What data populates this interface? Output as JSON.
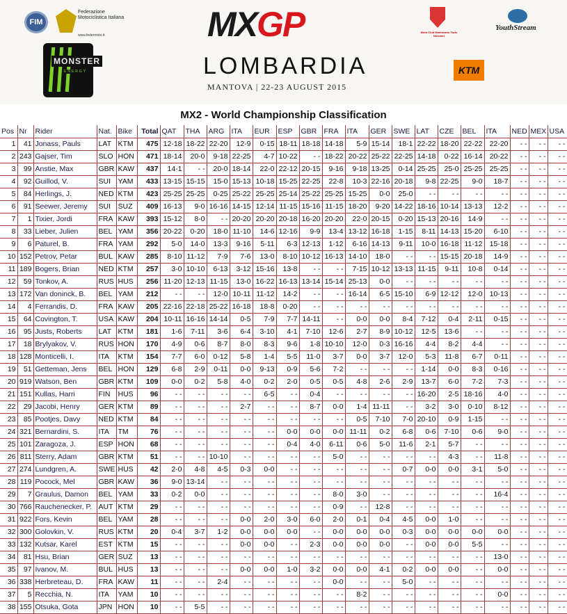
{
  "header": {
    "logos": {
      "fim": "FIM",
      "fmi": "Federazione Motociclistica Italiana",
      "fmi_url": "www.federmoto.it",
      "monster": "MONSTER",
      "monster_sub": "ENERGY",
      "mcm": "Moto Club Mantovano Tazio Nuvolari",
      "youthstream": "YouthStream",
      "ktm": "KTM"
    },
    "event_logo_mx": "MX",
    "event_logo_gp": "GP",
    "event": "LOMBARDIA",
    "subtitle": "MANTOVA | 22-23 AUGUST 2015",
    "brand_red": "#d8161d",
    "ktm_orange": "#f07d00",
    "monster_green": "#7fd12a"
  },
  "title": "MX2 - World Championship Classification",
  "table": {
    "border_color": "#9e3b3b",
    "columns": [
      "Pos",
      "Nr",
      "Rider",
      "Nat.",
      "Bike",
      "Total",
      "QAT",
      "THA",
      "ARG",
      "ITA",
      "EUR",
      "ESP",
      "GBR",
      "FRA",
      "ITA",
      "GER",
      "SWE",
      "LAT",
      "CZE",
      "BEL",
      "ITA",
      "NED",
      "MEX",
      "USA"
    ],
    "rows": [
      [
        "1",
        "41",
        "Jonass, Pauls",
        "LAT",
        "KTM",
        "475",
        "12-18",
        "18-22",
        "22-20",
        "12-9",
        "0-15",
        "18-11",
        "18-18",
        "14-18",
        "5-9",
        "15-14",
        "18-1",
        "22-22",
        "18-20",
        "22-22",
        "22-20",
        "- -",
        "- -",
        "- -"
      ],
      [
        "2",
        "243",
        "Gajser, Tim",
        "SLO",
        "HON",
        "471",
        "18-14",
        "20-0",
        "9-18",
        "22-25",
        "4-7",
        "10-22",
        "- -",
        "18-22",
        "20-22",
        "25-22",
        "22-25",
        "14-18",
        "0-22",
        "16-14",
        "20-22",
        "- -",
        "- -",
        "- -"
      ],
      [
        "3",
        "99",
        "Anstie, Max",
        "GBR",
        "KAW",
        "437",
        "14-1",
        "- -",
        "20-0",
        "18-14",
        "22-0",
        "22-12",
        "20-15",
        "9-16",
        "9-18",
        "13-25",
        "0-14",
        "25-25",
        "25-0",
        "25-25",
        "25-25",
        "- -",
        "- -",
        "- -"
      ],
      [
        "4",
        "92",
        "Guillod, V.",
        "SUI",
        "YAM",
        "433",
        "13-15",
        "15-15",
        "15-0",
        "15-13",
        "10-18",
        "15-25",
        "22-25",
        "22-8",
        "10-3",
        "22-16",
        "20-18",
        "9-8",
        "22-25",
        "9-0",
        "18-7",
        "- -",
        "- -",
        "- -"
      ],
      [
        "5",
        "84",
        "Herlings, J.",
        "NED",
        "KTM",
        "423",
        "25-25",
        "25-25",
        "0-25",
        "25-22",
        "25-25",
        "25-14",
        "25-22",
        "25-25",
        "15-25",
        "0-0",
        "25-0",
        "- -",
        "- -",
        "- -",
        "- -",
        "- -",
        "- -",
        "- -"
      ],
      [
        "6",
        "91",
        "Seewer, Jeremy",
        "SUI",
        "SUZ",
        "409",
        "16-13",
        "9-0",
        "16-16",
        "14-15",
        "12-14",
        "11-15",
        "15-16",
        "11-15",
        "18-20",
        "9-20",
        "14-22",
        "18-16",
        "10-14",
        "13-13",
        "12-2",
        "- -",
        "- -",
        "- -"
      ],
      [
        "7",
        "1",
        "Tixier, Jordi",
        "FRA",
        "KAW",
        "393",
        "15-12",
        "8-0",
        "- -",
        "20-20",
        "20-20",
        "20-18",
        "16-20",
        "20-20",
        "22-0",
        "20-15",
        "0-20",
        "15-13",
        "20-16",
        "14-9",
        "- -",
        "- -",
        "- -",
        "- -"
      ],
      [
        "8",
        "33",
        "Lieber, Julien",
        "BEL",
        "YAM",
        "356",
        "20-22",
        "0-20",
        "18-0",
        "11-10",
        "14-6",
        "12-16",
        "9-9",
        "13-4",
        "13-12",
        "16-18",
        "1-15",
        "8-11",
        "14-13",
        "15-20",
        "6-10",
        "- -",
        "- -",
        "- -"
      ],
      [
        "9",
        "6",
        "Paturel, B.",
        "FRA",
        "YAM",
        "292",
        "5-0",
        "14-0",
        "13-3",
        "9-16",
        "5-11",
        "6-3",
        "12-13",
        "1-12",
        "6-16",
        "14-13",
        "9-11",
        "10-0",
        "16-18",
        "11-12",
        "15-18",
        "- -",
        "- -",
        "- -"
      ],
      [
        "10",
        "152",
        "Petrov, Petar",
        "BUL",
        "KAW",
        "285",
        "8-10",
        "11-12",
        "7-9",
        "7-6",
        "13-0",
        "8-10",
        "10-12",
        "16-13",
        "14-10",
        "18-0",
        "- -",
        "- -",
        "15-15",
        "20-18",
        "14-9",
        "- -",
        "- -",
        "- -"
      ],
      [
        "11",
        "189",
        "Bogers, Brian",
        "NED",
        "KTM",
        "257",
        "3-0",
        "10-10",
        "6-13",
        "3-12",
        "15-16",
        "13-8",
        "- -",
        "- -",
        "7-15",
        "10-12",
        "13-13",
        "11-15",
        "9-11",
        "10-8",
        "0-14",
        "- -",
        "- -",
        "- -"
      ],
      [
        "12",
        "59",
        "Tonkov, A.",
        "RUS",
        "HUS",
        "256",
        "11-20",
        "12-13",
        "11-15",
        "13-0",
        "16-22",
        "16-13",
        "13-14",
        "15-14",
        "25-13",
        "0-0",
        "- -",
        "- -",
        "- -",
        "- -",
        "- -",
        "- -",
        "- -",
        "- -"
      ],
      [
        "13",
        "172",
        "Van doninck, B.",
        "BEL",
        "YAM",
        "212",
        "- -",
        "- -",
        "12-0",
        "10-11",
        "11-12",
        "14-2",
        "- -",
        "- -",
        "16-14",
        "6-5",
        "15-10",
        "6-9",
        "12-12",
        "12-0",
        "10-13",
        "- -",
        "- -",
        "- -"
      ],
      [
        "14",
        "4",
        "Ferrandis, D.",
        "FRA",
        "KAW",
        "205",
        "22-16",
        "22-18",
        "25-22",
        "16-18",
        "18-8",
        "0-20",
        "- -",
        "- -",
        "- -",
        "- -",
        "- -",
        "- -",
        "- -",
        "- -",
        "- -",
        "- -",
        "- -",
        "- -"
      ],
      [
        "15",
        "64",
        "Covington, T.",
        "USA",
        "KAW",
        "204",
        "10-11",
        "16-16",
        "14-14",
        "0-5",
        "7-9",
        "7-7",
        "14-11",
        "- -",
        "0-0",
        "0-0",
        "8-4",
        "7-12",
        "0-4",
        "2-11",
        "0-15",
        "- -",
        "- -",
        "- -"
      ],
      [
        "16",
        "95",
        "Justs, Roberts",
        "LAT",
        "KTM",
        "181",
        "1-6",
        "7-11",
        "3-6",
        "6-4",
        "3-10",
        "4-1",
        "7-10",
        "12-6",
        "2-7",
        "8-9",
        "10-12",
        "12-5",
        "13-6",
        "- -",
        "- -",
        "- -",
        "- -",
        "- -"
      ],
      [
        "17",
        "18",
        "Brylyakov, V.",
        "RUS",
        "HON",
        "170",
        "4-9",
        "0-6",
        "8-7",
        "8-0",
        "8-3",
        "9-6",
        "1-8",
        "10-10",
        "12-0",
        "0-3",
        "16-16",
        "4-4",
        "8-2",
        "4-4",
        "- -",
        "- -",
        "- -",
        "- -"
      ],
      [
        "18",
        "128",
        "Monticelli, I.",
        "ITA",
        "KTM",
        "154",
        "7-7",
        "6-0",
        "0-12",
        "5-8",
        "1-4",
        "5-5",
        "11-0",
        "3-7",
        "0-0",
        "3-7",
        "12-0",
        "5-3",
        "11-8",
        "6-7",
        "0-11",
        "- -",
        "- -",
        "- -"
      ],
      [
        "19",
        "51",
        "Getteman, Jens",
        "BEL",
        "HON",
        "129",
        "6-8",
        "2-9",
        "0-11",
        "0-0",
        "9-13",
        "0-9",
        "5-6",
        "7-2",
        "- -",
        "- -",
        "- -",
        "1-14",
        "0-0",
        "8-3",
        "0-16",
        "- -",
        "- -",
        "- -"
      ],
      [
        "20",
        "919",
        "Watson, Ben",
        "GBR",
        "KTM",
        "109",
        "0-0",
        "0-2",
        "5-8",
        "4-0",
        "0-2",
        "2-0",
        "0-5",
        "0-5",
        "4-8",
        "2-6",
        "2-9",
        "13-7",
        "6-0",
        "7-2",
        "7-3",
        "- -",
        "- -",
        "- -"
      ],
      [
        "21",
        "151",
        "Kullas, Harri",
        "FIN",
        "HUS",
        "96",
        "- -",
        "- -",
        "- -",
        "- -",
        "6-5",
        "- -",
        "0-4",
        "- -",
        "- -",
        "- -",
        "- -",
        "16-20",
        "2-5",
        "18-16",
        "4-0",
        "- -",
        "- -",
        "- -"
      ],
      [
        "22",
        "29",
        "Jacobi, Henry",
        "GER",
        "KTM",
        "89",
        "- -",
        "- -",
        "- -",
        "2-7",
        "- -",
        "- -",
        "8-7",
        "0-0",
        "1-4",
        "11-11",
        "- -",
        "3-2",
        "3-0",
        "0-10",
        "8-12",
        "- -",
        "- -",
        "- -"
      ],
      [
        "23",
        "85",
        "Pootjes, Davy",
        "NED",
        "KTM",
        "84",
        "- -",
        "- -",
        "- -",
        "- -",
        "- -",
        "- -",
        "- -",
        "- -",
        "0-5",
        "7-10",
        "7-0",
        "20-10",
        "0-9",
        "1-15",
        "- -",
        "- -",
        "- -",
        "- -"
      ],
      [
        "24",
        "321",
        "Bernardini, S.",
        "ITA",
        "TM",
        "76",
        "- -",
        "- -",
        "- -",
        "- -",
        "- -",
        "0-0",
        "0-0",
        "0-0",
        "11-11",
        "0-2",
        "6-8",
        "0-6",
        "7-10",
        "0-6",
        "9-0",
        "- -",
        "- -",
        "- -"
      ],
      [
        "25",
        "101",
        "Zaragoza, J.",
        "ESP",
        "HON",
        "68",
        "- -",
        "- -",
        "- -",
        "- -",
        "- -",
        "0-4",
        "4-0",
        "6-11",
        "0-6",
        "5-0",
        "11-6",
        "2-1",
        "5-7",
        "- -",
        "- -",
        "- -",
        "- -",
        "- -"
      ],
      [
        "26",
        "811",
        "Sterry, Adam",
        "GBR",
        "KTM",
        "51",
        "- -",
        "- -",
        "10-10",
        "- -",
        "- -",
        "- -",
        "- -",
        "5-0",
        "- -",
        "- -",
        "- -",
        "- -",
        "4-3",
        "- -",
        "11-8",
        "- -",
        "- -",
        "- -"
      ],
      [
        "27",
        "274",
        "Lundgren, A.",
        "SWE",
        "HUS",
        "42",
        "2-0",
        "4-8",
        "4-5",
        "0-3",
        "0-0",
        "- -",
        "- -",
        "- -",
        "- -",
        "- -",
        "0-7",
        "0-0",
        "0-0",
        "3-1",
        "5-0",
        "- -",
        "- -",
        "- -"
      ],
      [
        "28",
        "119",
        "Pocock, Mel",
        "GBR",
        "KAW",
        "36",
        "9-0",
        "13-14",
        "- -",
        "- -",
        "- -",
        "- -",
        "- -",
        "- -",
        "- -",
        "- -",
        "- -",
        "- -",
        "- -",
        "- -",
        "- -",
        "- -",
        "- -",
        "- -"
      ],
      [
        "29",
        "7",
        "Graulus, Damon",
        "BEL",
        "YAM",
        "33",
        "0-2",
        "0-0",
        "- -",
        "- -",
        "- -",
        "- -",
        "- -",
        "8-0",
        "3-0",
        "- -",
        "- -",
        "- -",
        "- -",
        "- -",
        "16-4",
        "- -",
        "- -",
        "- -"
      ],
      [
        "30",
        "766",
        "Rauchenecker, P.",
        "AUT",
        "KTM",
        "29",
        "- -",
        "- -",
        "- -",
        "- -",
        "- -",
        "- -",
        "- -",
        "0-9",
        "- -",
        "12-8",
        "- -",
        "- -",
        "- -",
        "- -",
        "- -",
        "- -",
        "- -",
        "- -"
      ],
      [
        "31",
        "922",
        "Fors, Kevin",
        "BEL",
        "YAM",
        "28",
        "- -",
        "- -",
        "- -",
        "0-0",
        "2-0",
        "3-0",
        "6-0",
        "2-0",
        "0-1",
        "0-4",
        "4-5",
        "0-0",
        "1-0",
        "- -",
        "- -",
        "- -",
        "- -",
        "- -"
      ],
      [
        "32",
        "300",
        "Golovkin, V.",
        "RUS",
        "KTM",
        "20",
        "0-4",
        "3-7",
        "1-2",
        "0-0",
        "0-0",
        "0-0",
        "- -",
        "0-0",
        "0-0",
        "0-0",
        "0-3",
        "0-0",
        "0-0",
        "0-0",
        "0-0",
        "- -",
        "- -",
        "- -"
      ],
      [
        "33",
        "132",
        "Kutsar, Karel",
        "EST",
        "KTM",
        "15",
        "- -",
        "- -",
        "- -",
        "0-0",
        "0-0",
        "- -",
        "2-3",
        "0-0",
        "0-0",
        "0-0",
        "- -",
        "0-0",
        "0-0",
        "5-5",
        "- -",
        "- -",
        "- -",
        "- -"
      ],
      [
        "34",
        "81",
        "Hsu, Brian",
        "GER",
        "SUZ",
        "13",
        "- -",
        "- -",
        "- -",
        "- -",
        "- -",
        "- -",
        "- -",
        "- -",
        "- -",
        "- -",
        "- -",
        "- -",
        "- -",
        "- -",
        "13-0",
        "- -",
        "- -",
        "- -"
      ],
      [
        "35",
        "97",
        "Ivanov, M.",
        "BUL",
        "HUS",
        "13",
        "- -",
        "- -",
        "- -",
        "0-0",
        "0-0",
        "1-0",
        "3-2",
        "0-0",
        "0-0",
        "4-1",
        "0-2",
        "0-0",
        "0-0",
        "- -",
        "0-0",
        "- -",
        "- -",
        "- -"
      ],
      [
        "36",
        "338",
        "Herbreteau, D.",
        "FRA",
        "KAW",
        "11",
        "- -",
        "- -",
        "2-4",
        "- -",
        "- -",
        "- -",
        "- -",
        "0-0",
        "- -",
        "- -",
        "5-0",
        "- -",
        "- -",
        "- -",
        "- -",
        "- -",
        "- -",
        "- -"
      ],
      [
        "37",
        "5",
        "Recchia, N.",
        "ITA",
        "YAM",
        "10",
        "- -",
        "- -",
        "- -",
        "- -",
        "- -",
        "- -",
        "- -",
        "- -",
        "8-2",
        "- -",
        "- -",
        "- -",
        "- -",
        "- -",
        "0-0",
        "- -",
        "- -",
        "- -"
      ],
      [
        "38",
        "155",
        "Otsuka, Gota",
        "JPN",
        "HON",
        "10",
        "- -",
        "5-5",
        "- -",
        "- -",
        "- -",
        "- -",
        "- -",
        "- -",
        "- -",
        "- -",
        "- -",
        "- -",
        "- -",
        "- -",
        "- -",
        "- -",
        "- -",
        "- -"
      ]
    ]
  }
}
